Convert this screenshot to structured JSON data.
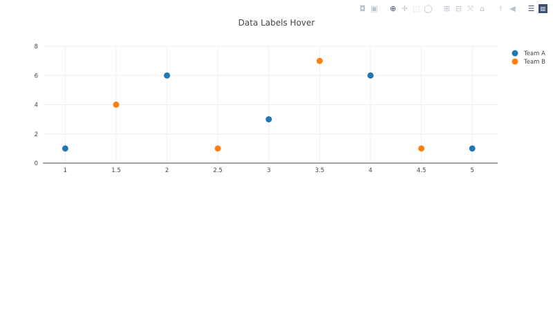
{
  "modebar": {
    "buttons": [
      {
        "name": "camera-icon",
        "glyph": "◘"
      },
      {
        "name": "save-icon",
        "glyph": "▣"
      },
      {
        "name": "zoom-icon",
        "glyph": "⊕",
        "active": true
      },
      {
        "name": "pan-icon",
        "glyph": "✛"
      },
      {
        "name": "box-select-icon",
        "glyph": "⬚"
      },
      {
        "name": "lasso-icon",
        "glyph": "◯"
      },
      {
        "name": "zoom-in-icon",
        "glyph": "⊞"
      },
      {
        "name": "zoom-out-icon",
        "glyph": "⊟"
      },
      {
        "name": "autoscale-icon",
        "glyph": "⤧"
      },
      {
        "name": "home-icon",
        "glyph": "⌂"
      },
      {
        "name": "spike-lines-icon",
        "glyph": "⫯"
      },
      {
        "name": "hover-closest-icon",
        "glyph": "◀"
      },
      {
        "name": "hover-compare-icon",
        "glyph": "☰",
        "active": true
      },
      {
        "name": "plotly-logo-icon",
        "glyph": "▥",
        "logo": true
      }
    ]
  },
  "chart_data": {
    "type": "scatter",
    "title": "Data Labels Hover",
    "xlim": [
      0.78,
      5.25
    ],
    "ylim": [
      0,
      8
    ],
    "xticks": [
      1,
      1.5,
      2,
      2.5,
      3,
      3.5,
      4,
      4.5,
      5
    ],
    "xtick_labels": [
      "1",
      "1.5",
      "2",
      "2.5",
      "3",
      "3.5",
      "4",
      "4.5",
      "5"
    ],
    "yticks": [
      0,
      2,
      4,
      6,
      8
    ],
    "ytick_labels": [
      "0",
      "2",
      "4",
      "6",
      "8"
    ],
    "grid": true,
    "legend_placement": "top-right",
    "series": [
      {
        "name": "Team A",
        "color": "#1f77b4",
        "x": [
          1,
          2,
          3,
          4,
          5
        ],
        "y": [
          1,
          6,
          3,
          6,
          1
        ]
      },
      {
        "name": "Team B",
        "color": "#ff7f0e",
        "x": [
          1.5,
          2.5,
          3.5,
          4.5
        ],
        "y": [
          4,
          1,
          7,
          1
        ]
      }
    ]
  }
}
